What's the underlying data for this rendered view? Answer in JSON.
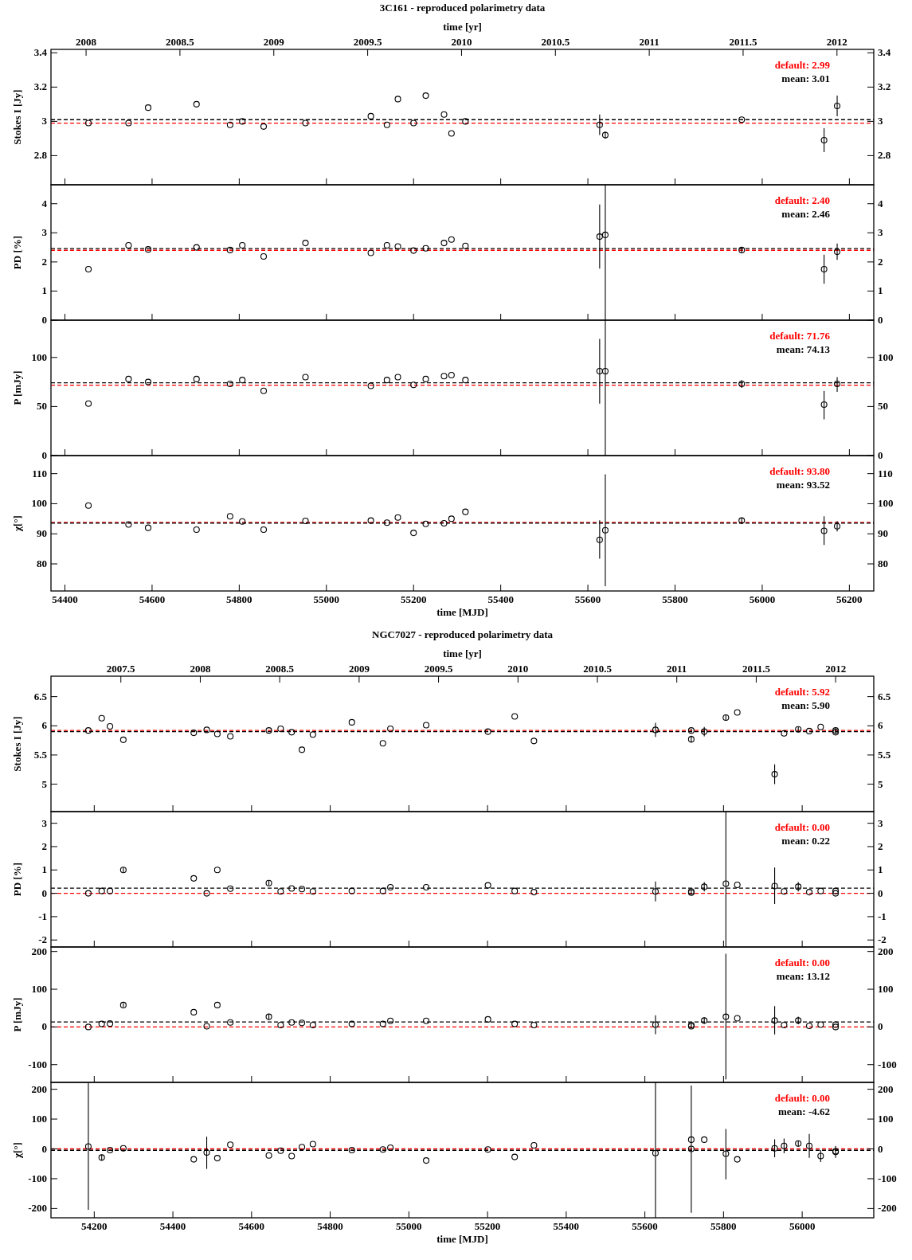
{
  "chart_data": [
    {
      "type": "scatter",
      "title": "3C161 - reproduced polarimetry data",
      "x2label": "time [yr]",
      "x2lim": [
        2007.813,
        2012.196
      ],
      "x2ticks": [
        2008,
        2008.5,
        2009,
        2009.5,
        2010,
        2010.5,
        2011,
        2011.5,
        2012
      ],
      "xlim": [
        54368,
        56256
      ],
      "xticks": [
        54400,
        54600,
        54800,
        55000,
        55200,
        55400,
        55600,
        55800,
        56000,
        56200
      ],
      "tick_labels": "y",
      "ylabel": "Stokes I [Jy]",
      "ylim": [
        2.63,
        3.42
      ],
      "yticks": [
        2.8,
        3,
        3.2,
        3.4
      ],
      "y2lim": [
        2.63,
        3.42
      ],
      "y2ticks": [
        2.8,
        3,
        3.2,
        3.4
      ],
      "marker": "circle",
      "x": [
        54454,
        54546,
        54591,
        54702,
        54779,
        54807,
        54856,
        54952,
        55102,
        55139,
        55164,
        55200,
        55228,
        55270,
        55287,
        55319,
        55627,
        55640,
        55953,
        56142,
        56172
      ],
      "values": [
        2.99,
        2.99,
        3.08,
        3.1,
        2.98,
        3.0,
        2.97,
        2.99,
        3.03,
        2.98,
        3.13,
        2.99,
        3.15,
        3.04,
        2.93,
        3.0,
        2.98,
        2.92,
        3.01,
        2.89,
        3.09
      ],
      "errors": [
        null,
        null,
        null,
        null,
        null,
        null,
        null,
        null,
        null,
        null,
        null,
        null,
        null,
        null,
        null,
        null,
        0.06,
        0.02,
        null,
        0.07,
        0.06
      ],
      "ref_lines": [
        {
          "axis": "y",
          "value": 2.99,
          "label": "default: 2.99",
          "color": "#ff0000",
          "line_style": "dashed"
        },
        {
          "axis": "y",
          "value": 3.01,
          "label": "mean: 3.01",
          "color": "#000000",
          "line_style": "dashed"
        }
      ]
    },
    {
      "type": "scatter",
      "xlim": [
        54368,
        56256
      ],
      "xticks": [
        54400,
        54600,
        54800,
        55000,
        55200,
        55400,
        55600,
        55800,
        56000,
        56200
      ],
      "tick_labels": "y",
      "ylabel": "PD [%]",
      "ylim": [
        0,
        4.65
      ],
      "yticks": [
        0,
        1,
        2,
        3,
        4
      ],
      "y2lim": [
        0,
        4.65
      ],
      "y2ticks": [
        0,
        1,
        2,
        3,
        4
      ],
      "marker": "circle",
      "x": [
        54454,
        54546,
        54591,
        54702,
        54779,
        54807,
        54856,
        54952,
        55102,
        55139,
        55164,
        55200,
        55228,
        55270,
        55287,
        55319,
        55627,
        55640,
        55953,
        56142,
        56172
      ],
      "values": [
        1.75,
        2.57,
        2.43,
        2.5,
        2.41,
        2.57,
        2.19,
        2.65,
        2.31,
        2.57,
        2.53,
        2.39,
        2.47,
        2.65,
        2.77,
        2.55,
        2.87,
        2.93,
        2.41,
        1.75,
        2.35
      ],
      "errors": [
        null,
        null,
        null,
        null,
        null,
        null,
        null,
        null,
        null,
        null,
        null,
        null,
        null,
        null,
        null,
        null,
        1.1,
        [
          0,
          4.65
        ],
        0.1,
        0.5,
        0.28
      ],
      "ref_lines": [
        {
          "axis": "y",
          "value": 2.4,
          "label": "default: 2.40",
          "color": "#ff0000",
          "line_style": "dashed"
        },
        {
          "axis": "y",
          "value": 2.46,
          "label": "mean: 2.46",
          "color": "#000000",
          "line_style": "dashed"
        }
      ]
    },
    {
      "type": "scatter",
      "xlim": [
        54368,
        56256
      ],
      "xticks": [
        54400,
        54600,
        54800,
        55000,
        55200,
        55400,
        55600,
        55800,
        56000,
        56200
      ],
      "tick_labels": "y",
      "ylabel": "P [mJy]",
      "ylim": [
        0,
        138
      ],
      "yticks": [
        0,
        50,
        100
      ],
      "y2lim": [
        0,
        138
      ],
      "y2ticks": [
        0,
        50,
        100
      ],
      "marker": "circle",
      "x": [
        54454,
        54546,
        54591,
        54702,
        54779,
        54807,
        54856,
        54952,
        55102,
        55139,
        55164,
        55200,
        55228,
        55270,
        55287,
        55319,
        55627,
        55640,
        55953,
        56142,
        56172
      ],
      "values": [
        53,
        78,
        75,
        78,
        73,
        77,
        66,
        80,
        71,
        77,
        80,
        72,
        78,
        81,
        82,
        77,
        86,
        86,
        73,
        52,
        73
      ],
      "errors": [
        null,
        null,
        null,
        null,
        null,
        null,
        null,
        null,
        null,
        null,
        null,
        null,
        null,
        null,
        null,
        null,
        [
          53,
          119
        ],
        [
          0,
          138
        ],
        4,
        [
          37,
          66
        ],
        [
          65,
          80
        ]
      ],
      "ref_lines": [
        {
          "axis": "y",
          "value": 71.76,
          "label": "default: 71.76",
          "color": "#ff0000",
          "line_style": "dashed"
        },
        {
          "axis": "y",
          "value": 74.13,
          "label": "mean: 74.13",
          "color": "#000000",
          "line_style": "dashed"
        }
      ]
    },
    {
      "type": "scatter",
      "xlabel": "time [MJD]",
      "xlim": [
        54368,
        56256
      ],
      "xticks": [
        54400,
        54600,
        54800,
        55000,
        55200,
        55400,
        55600,
        55800,
        56000,
        56200
      ],
      "ylabel": "χ[°]",
      "ylim": [
        71,
        116
      ],
      "yticks": [
        80,
        90,
        100,
        110
      ],
      "y2lim": [
        71,
        116
      ],
      "y2ticks": [
        80,
        90,
        100,
        110
      ],
      "marker": "circle",
      "x": [
        54454,
        54546,
        54591,
        54702,
        54779,
        54807,
        54856,
        54952,
        55102,
        55139,
        55164,
        55200,
        55228,
        55270,
        55287,
        55319,
        55627,
        55640,
        55953,
        56142,
        56172
      ],
      "values": [
        99.4,
        93.1,
        92.0,
        91.4,
        95.8,
        94.1,
        91.4,
        94.3,
        94.4,
        93.7,
        95.4,
        90.3,
        93.3,
        93.5,
        95.0,
        97.3,
        88.0,
        91.2,
        94.4,
        91.0,
        92.5
      ],
      "errors": [
        null,
        null,
        null,
        null,
        null,
        null,
        null,
        null,
        null,
        null,
        null,
        null,
        null,
        null,
        null,
        null,
        [
          81.7,
          94.5
        ],
        [
          72.6,
          109.8
        ],
        1,
        [
          86.3,
          95.8
        ],
        1.7
      ],
      "ref_lines": [
        {
          "axis": "y",
          "value": 93.8,
          "label": "default: 93.80",
          "color": "#ff0000",
          "line_style": "dashed"
        },
        {
          "axis": "y",
          "value": 93.52,
          "label": "mean: 93.52",
          "color": "#000000",
          "line_style": "dashed"
        }
      ]
    },
    {
      "type": "scatter",
      "title": "NGC7027 - reproduced polarimetry data",
      "x2label": "time [yr]",
      "x2lim": [
        2007.06,
        2012.24
      ],
      "x2ticks": [
        2007.5,
        2008,
        2008.5,
        2009,
        2009.5,
        2010,
        2010.5,
        2011,
        2011.5,
        2012
      ],
      "xlim": [
        54090,
        56182
      ],
      "xticks": [
        54200,
        54400,
        54600,
        54800,
        55000,
        55200,
        55400,
        55600,
        55800,
        56000
      ],
      "tick_labels": "y",
      "ylabel": "Stokes I [Jy]",
      "ylim": [
        4.53,
        6.85
      ],
      "yticks": [
        5,
        5.5,
        6,
        6.5
      ],
      "y2lim": [
        4.53,
        6.85
      ],
      "y2ticks": [
        5,
        5.5,
        6,
        6.5
      ],
      "marker": "circle",
      "x": [
        54185,
        54219,
        54240,
        54274,
        54453,
        54486,
        54513,
        54546,
        54644,
        54674,
        54702,
        54728,
        54756,
        54855,
        54934,
        54953,
        55044,
        55201,
        55269,
        55318,
        55627,
        55718,
        55718,
        55751,
        55806,
        55835,
        55930,
        55954,
        55990,
        56018,
        56047,
        56085,
        56085
      ],
      "values": [
        5.92,
        6.13,
        5.99,
        5.76,
        5.88,
        5.93,
        5.86,
        5.82,
        5.92,
        5.95,
        5.89,
        5.59,
        5.85,
        6.06,
        5.7,
        5.95,
        6.01,
        5.9,
        6.16,
        5.74,
        5.93,
        5.92,
        5.77,
        5.9,
        6.14,
        6.23,
        5.17,
        5.87,
        5.94,
        5.91,
        5.98,
        5.92,
        5.89
      ],
      "errors": [
        null,
        null,
        null,
        null,
        null,
        null,
        null,
        null,
        null,
        null,
        null,
        null,
        null,
        null,
        null,
        null,
        null,
        null,
        null,
        null,
        0.12,
        0.03,
        0.06,
        0.08,
        0.05,
        null,
        0.17,
        null,
        0.04,
        null,
        null,
        0.05,
        null
      ],
      "ref_lines": [
        {
          "axis": "y",
          "value": 5.92,
          "label": "default: 5.92",
          "color": "#ff0000",
          "line_style": "dashed"
        },
        {
          "axis": "y",
          "value": 5.9,
          "label": "mean: 5.90",
          "color": "#000000",
          "line_style": "dashed"
        }
      ]
    },
    {
      "type": "scatter",
      "xlim": [
        54090,
        56182
      ],
      "xticks": [
        54200,
        54400,
        54600,
        54800,
        55000,
        55200,
        55400,
        55600,
        55800,
        56000
      ],
      "tick_labels": "y",
      "ylabel": "PD [%]",
      "ylim": [
        -2.3,
        3.5
      ],
      "yticks": [
        -2,
        -1,
        0,
        1,
        2,
        3
      ],
      "y2lim": [
        -2.3,
        3.5
      ],
      "y2ticks": [
        -2,
        -1,
        0,
        1,
        2,
        3
      ],
      "marker": "circle",
      "x": [
        54185,
        54219,
        54240,
        54274,
        54453,
        54486,
        54513,
        54546,
        54644,
        54674,
        54702,
        54728,
        54756,
        54855,
        54934,
        54953,
        55044,
        55201,
        55269,
        55318,
        55627,
        55718,
        55718,
        55751,
        55806,
        55835,
        55930,
        55954,
        55990,
        56018,
        56047,
        56085,
        56085
      ],
      "values": [
        0.0,
        0.1,
        0.1,
        1.0,
        0.64,
        0.0,
        1.0,
        0.2,
        0.44,
        0.08,
        0.21,
        0.18,
        0.08,
        0.1,
        0.1,
        0.26,
        0.26,
        0.34,
        0.1,
        0.05,
        0.08,
        0.08,
        0.03,
        0.28,
        0.41,
        0.36,
        0.31,
        0.08,
        0.28,
        0.05,
        0.1,
        0.1,
        0.0
      ],
      "errors": [
        null,
        null,
        null,
        0.1,
        null,
        null,
        null,
        null,
        0.1,
        null,
        null,
        null,
        null,
        null,
        null,
        null,
        null,
        null,
        null,
        null,
        0.43,
        0.1,
        null,
        0.2,
        [
          -2.3,
          3.5
        ],
        null,
        [
          -0.46,
          1.1
        ],
        null,
        0.2,
        null,
        null,
        null,
        null
      ],
      "ref_lines": [
        {
          "axis": "y",
          "value": 0.0,
          "label": "default: 0.00",
          "color": "#ff0000",
          "line_style": "dashed"
        },
        {
          "axis": "y",
          "value": 0.22,
          "label": "mean: 0.22",
          "color": "#000000",
          "line_style": "dashed"
        }
      ]
    },
    {
      "type": "scatter",
      "xlim": [
        54090,
        56182
      ],
      "xticks": [
        54200,
        54400,
        54600,
        54800,
        55000,
        55200,
        55400,
        55600,
        55800,
        56000
      ],
      "tick_labels": "y",
      "ylabel": "P [mJy]",
      "ylim": [
        -147,
        212
      ],
      "yticks": [
        -100,
        0,
        100,
        200
      ],
      "y2lim": [
        -147,
        212
      ],
      "y2ticks": [
        -100,
        0,
        100,
        200
      ],
      "marker": "circle",
      "x": [
        54185,
        54219,
        54240,
        54274,
        54453,
        54486,
        54513,
        54546,
        54644,
        54674,
        54702,
        54728,
        54756,
        54855,
        54934,
        54953,
        55044,
        55201,
        55269,
        55318,
        55627,
        55718,
        55718,
        55751,
        55806,
        55835,
        55930,
        55954,
        55990,
        56018,
        56047,
        56085,
        56085
      ],
      "values": [
        0,
        8,
        9,
        58,
        39,
        2,
        58,
        12,
        27,
        5,
        12,
        11,
        5,
        8,
        8,
        16,
        16,
        20,
        8,
        5,
        6,
        5,
        2,
        17,
        27,
        23,
        17,
        5,
        17,
        3,
        6,
        6,
        0
      ],
      "errors": [
        null,
        null,
        null,
        5,
        null,
        null,
        null,
        null,
        6,
        null,
        null,
        null,
        null,
        null,
        null,
        null,
        null,
        null,
        null,
        null,
        25,
        6,
        null,
        8,
        [
          -139,
          194
        ],
        null,
        [
          -20,
          55
        ],
        null,
        10,
        null,
        null,
        null,
        null
      ],
      "ref_lines": [
        {
          "axis": "y",
          "value": 0.0,
          "label": "default: 0.00",
          "color": "#ff0000",
          "line_style": "dashed"
        },
        {
          "axis": "y",
          "value": 13.12,
          "label": "mean: 13.12",
          "color": "#000000",
          "line_style": "dashed"
        }
      ]
    },
    {
      "type": "scatter",
      "xlabel": "time [MJD]",
      "xlim": [
        54090,
        56182
      ],
      "xticks": [
        54200,
        54400,
        54600,
        54800,
        55000,
        55200,
        55400,
        55600,
        55800,
        56000
      ],
      "ylabel": "χ[°]",
      "ylim": [
        -231,
        223
      ],
      "yticks": [
        -200,
        -100,
        0,
        100,
        200
      ],
      "y2lim": [
        -231,
        223
      ],
      "y2ticks": [
        -200,
        -100,
        0,
        100,
        200
      ],
      "marker": "circle",
      "x": [
        54185,
        54219,
        54240,
        54274,
        54453,
        54486,
        54513,
        54546,
        54644,
        54674,
        54702,
        54728,
        54756,
        54855,
        54934,
        54953,
        55044,
        55201,
        55269,
        55318,
        55627,
        55718,
        55718,
        55751,
        55806,
        55835,
        55930,
        55954,
        55990,
        56018,
        56047,
        56085,
        56085
      ],
      "values": [
        8,
        -29,
        -4,
        2,
        -35,
        -12,
        -31,
        14,
        -22,
        -6,
        -24,
        6,
        16,
        -4,
        -2,
        4,
        -39,
        -2,
        -27,
        12,
        -14,
        31,
        0,
        31,
        -16,
        -35,
        2,
        10,
        18,
        10,
        -24,
        -10,
        -8
      ],
      "errors": [
        [
          -204,
          220
        ],
        10,
        null,
        null,
        null,
        [
          -67,
          41
        ],
        null,
        null,
        null,
        null,
        null,
        null,
        null,
        null,
        null,
        null,
        null,
        null,
        null,
        null,
        [
          -231,
          223
        ],
        [
          -214,
          212
        ],
        null,
        null,
        [
          -102,
          67
        ],
        null,
        30,
        25,
        10,
        40,
        20,
        20,
        null
      ],
      "ref_lines": [
        {
          "axis": "y",
          "value": 0.0,
          "label": "default: 0.00",
          "color": "#ff0000",
          "line_style": "dashed"
        },
        {
          "axis": "y",
          "value": -4.62,
          "label": "mean: -4.62",
          "color": "#000000",
          "line_style": "dashed"
        }
      ]
    }
  ]
}
